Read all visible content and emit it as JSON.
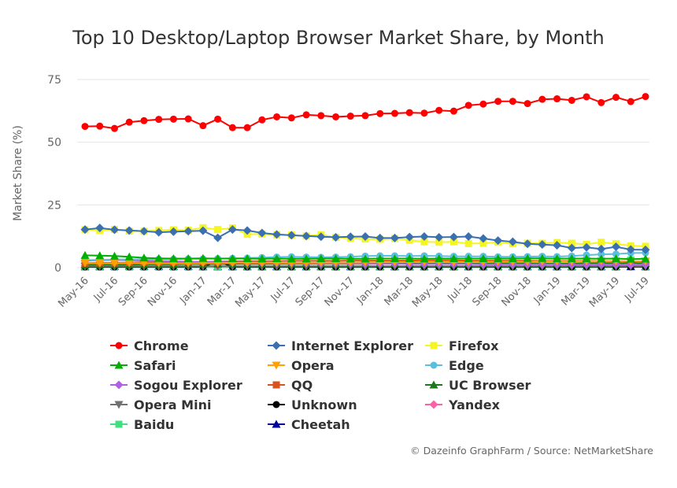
{
  "chart_data": {
    "type": "line",
    "title": "Top 10 Desktop/Laptop Browser Market Share, by Month",
    "ylabel": "Market Share (%)",
    "xlabel": "",
    "ylim": [
      0,
      75
    ],
    "yticks": [
      "0",
      "25",
      "50",
      "75"
    ],
    "grid": true,
    "legend_position": "bottom",
    "x": [
      "May-16",
      "Jun-16",
      "Jul-16",
      "Aug-16",
      "Sep-16",
      "Oct-16",
      "Nov-16",
      "Dec-16",
      "Jan-17",
      "Feb-17",
      "Mar-17",
      "Apr-17",
      "May-17",
      "Jun-17",
      "Jul-17",
      "Aug-17",
      "Sep-17",
      "Oct-17",
      "Nov-17",
      "Dec-17",
      "Jan-18",
      "Feb-18",
      "Mar-18",
      "Apr-18",
      "May-18",
      "Jun-18",
      "Jul-18",
      "Aug-18",
      "Sep-18",
      "Oct-18",
      "Nov-18",
      "Dec-18",
      "Jan-19",
      "Feb-19",
      "Mar-19",
      "Apr-19",
      "May-19",
      "Jun-19",
      "Jul-19"
    ],
    "xtick_labels": [
      "May-16",
      "Jul-16",
      "Sep-16",
      "Nov-16",
      "Jan-17",
      "Mar-17",
      "May-17",
      "Jul-17",
      "Sep-17",
      "Nov-17",
      "Jan-18",
      "Mar-18",
      "May-18",
      "Jul-18",
      "Sep-18",
      "Nov-18",
      "Jan-19",
      "Mar-19",
      "May-19",
      "Jul-19"
    ],
    "series": [
      {
        "name": "Chrome",
        "color": "#ff0000",
        "marker": "circle",
        "values": [
          56.3,
          56.4,
          55.5,
          58,
          58.6,
          59.1,
          59.2,
          59.3,
          56.6,
          59.2,
          55.8,
          55.8,
          58.9,
          60.1,
          59.7,
          60.9,
          60.6,
          60.1,
          60.4,
          60.6,
          61.4,
          61.5,
          61.8,
          61.6,
          62.7,
          62.4,
          64.7,
          65.2,
          66.3,
          66.3,
          65.4,
          67.1,
          67.3,
          66.7,
          68.1,
          65.8,
          67.9,
          66.2,
          68.2
        ]
      },
      {
        "name": "Internet Explorer",
        "color": "#3a6fb0",
        "marker": "diamond",
        "values": [
          15.2,
          15.8,
          15.1,
          14.8,
          14.5,
          14.1,
          14.3,
          14.5,
          14.7,
          11.9,
          15.2,
          14.8,
          13.8,
          13.2,
          12.9,
          12.6,
          12.3,
          12.1,
          12.3,
          12.4,
          11.8,
          11.8,
          12.2,
          12.4,
          12.1,
          12.2,
          12.4,
          11.6,
          10.8,
          10.3,
          9.5,
          9.2,
          8.9,
          7.8,
          8.1,
          7.4,
          8.3,
          7.2,
          7.1
        ]
      },
      {
        "name": "Firefox",
        "color": "#f5f522",
        "marker": "square",
        "values": [
          15.1,
          14.8,
          15.2,
          14.6,
          14.5,
          14.8,
          15.1,
          14.9,
          15.9,
          15.2,
          15.8,
          13.3,
          13.4,
          13.1,
          13.0,
          12.6,
          13.1,
          12.1,
          11.7,
          11.4,
          11.3,
          11.6,
          10.9,
          10.3,
          10.1,
          10.3,
          9.6,
          9.7,
          10.1,
          9.5,
          9.7,
          9.7,
          10.0,
          9.7,
          9.3,
          10.1,
          9.5,
          8.7,
          8.5
        ]
      },
      {
        "name": "Safari",
        "color": "#00b000",
        "marker": "triangle",
        "values": [
          4.9,
          4.8,
          4.6,
          4.3,
          3.9,
          3.7,
          3.6,
          3.6,
          3.7,
          3.6,
          3.6,
          3.6,
          3.5,
          3.6,
          3.5,
          3.5,
          3.6,
          3.6,
          3.5,
          3.5,
          3.6,
          3.6,
          3.6,
          3.5,
          3.6,
          3.6,
          3.6,
          3.6,
          3.6,
          3.6,
          3.7,
          3.7,
          3.6,
          3.6,
          3.6,
          3.5,
          3.6,
          3.4,
          3.5
        ]
      },
      {
        "name": "Opera",
        "color": "#ff9f00",
        "marker": "triangle-down",
        "values": [
          1.8,
          1.7,
          1.7,
          1.8,
          1.7,
          1.7,
          1.7,
          1.7,
          1.8,
          1.8,
          1.9,
          1.9,
          1.9,
          1.9,
          1.9,
          1.9,
          2.0,
          2.0,
          2.0,
          2.1,
          2.1,
          2.2,
          2.2,
          2.3,
          2.3,
          2.2,
          2.3,
          2.3,
          2.4,
          2.4,
          2.4,
          2.5,
          2.5,
          2.5,
          2.6,
          2.6,
          2.6,
          2.5,
          2.6
        ]
      },
      {
        "name": "Edge",
        "color": "#5bc0e0",
        "marker": "circle",
        "values": [
          3.0,
          3.1,
          3.2,
          3.3,
          3.3,
          3.4,
          3.4,
          3.5,
          3.5,
          3.6,
          3.7,
          3.8,
          4.0,
          4.2,
          4.3,
          4.2,
          4.1,
          4.2,
          4.3,
          4.6,
          4.7,
          4.7,
          4.6,
          4.7,
          4.6,
          4.5,
          4.5,
          4.5,
          4.3,
          4.3,
          4.4,
          4.5,
          4.4,
          4.6,
          5.0,
          5.3,
          5.4,
          5.8,
          5.9
        ]
      },
      {
        "name": "Sogou Explorer",
        "color": "#b060e0",
        "marker": "diamond",
        "values": [
          2.8,
          2.9,
          3.0,
          2.9,
          2.8,
          2.6,
          2.5,
          2.4,
          2.2,
          2.1,
          2.0,
          1.9,
          1.9,
          1.8,
          1.7,
          1.7,
          1.6,
          1.6,
          1.6,
          1.5,
          1.5,
          1.5,
          1.4,
          1.4,
          1.4,
          1.4,
          1.4,
          1.3,
          1.3,
          1.3,
          1.3,
          1.3,
          1.3,
          1.2,
          1.2,
          1.2,
          1.2,
          1.1,
          1.2
        ]
      },
      {
        "name": "QQ",
        "color": "#d9531e",
        "marker": "square",
        "values": [
          1.8,
          1.9,
          1.9,
          2.0,
          2.1,
          2.1,
          2.2,
          2.3,
          2.3,
          2.4,
          2.5,
          2.6,
          2.6,
          2.6,
          2.7,
          2.7,
          2.7,
          2.7,
          2.8,
          2.8,
          2.8,
          2.8,
          2.8,
          2.9,
          2.9,
          2.9,
          2.8,
          2.8,
          2.8,
          2.8,
          2.8,
          2.7,
          2.7,
          2.7,
          2.7,
          2.6,
          2.6,
          2.5,
          2.5
        ]
      },
      {
        "name": "UC Browser",
        "color": "#1a7a1a",
        "marker": "triangle",
        "values": [
          1.1,
          1.2,
          1.2,
          1.2,
          1.3,
          1.3,
          1.3,
          1.4,
          1.4,
          1.4,
          1.5,
          1.5,
          1.5,
          1.5,
          1.5,
          1.5,
          1.5,
          1.5,
          1.5,
          1.5,
          1.6,
          1.6,
          1.6,
          1.6,
          1.6,
          1.6,
          1.6,
          1.6,
          1.7,
          1.7,
          1.7,
          1.7,
          1.7,
          1.7,
          1.8,
          1.8,
          1.8,
          1.8,
          1.8
        ]
      },
      {
        "name": "Opera Mini",
        "color": "#707070",
        "marker": "triangle-down",
        "values": [
          0.5,
          0.5,
          0.5,
          0.5,
          0.5,
          0.5,
          0.5,
          0.5,
          0.5,
          0.5,
          0.5,
          0.5,
          0.5,
          0.5,
          0.5,
          0.5,
          0.5,
          0.5,
          0.5,
          0.5,
          0.5,
          0.5,
          0.5,
          0.5,
          0.5,
          0.5,
          0.5,
          0.5,
          0.5,
          0.5,
          0.5,
          0.5,
          0.5,
          0.5,
          0.5,
          0.5,
          0.5,
          0.5,
          0.5
        ]
      },
      {
        "name": "Unknown",
        "color": "#000000",
        "marker": "circle",
        "values": [
          0.3,
          0.3,
          0.3,
          0.3,
          0.3,
          0.3,
          0.3,
          0.3,
          0.3,
          2.5,
          0.3,
          0.3,
          0.3,
          0.3,
          0.3,
          0.3,
          0.3,
          0.3,
          0.3,
          0.3,
          0.3,
          0.3,
          0.3,
          0.3,
          0.3,
          0.3,
          0.3,
          0.3,
          0.3,
          0.3,
          0.3,
          0.3,
          0.3,
          0.3,
          0.3,
          0.3,
          0.3,
          0.3,
          0.3
        ]
      },
      {
        "name": "Yandex",
        "color": "#ff5fa8",
        "marker": "diamond",
        "values": [
          0.6,
          0.6,
          0.6,
          0.6,
          0.6,
          0.6,
          0.6,
          0.6,
          0.6,
          0.6,
          0.6,
          0.6,
          0.6,
          0.6,
          0.6,
          0.6,
          0.6,
          0.6,
          0.6,
          0.6,
          0.6,
          0.6,
          0.6,
          0.6,
          0.6,
          0.6,
          0.6,
          0.6,
          0.6,
          0.6,
          0.6,
          0.6,
          0.6,
          0.6,
          0.6,
          0.6,
          0.6,
          0.6,
          0.6
        ]
      },
      {
        "name": "Baidu",
        "color": "#40e080",
        "marker": "square",
        "values": [
          0.2,
          0.2,
          0.2,
          0.2,
          0.2,
          0.2,
          0.2,
          0.2,
          0.2,
          0.2,
          0.2,
          0.2,
          0.2,
          0.2,
          0.2,
          0.2,
          0.2,
          0.2,
          0.2,
          0.2,
          0.2,
          0.2,
          0.2,
          0.2,
          0.2,
          0.2,
          0.2,
          0.2,
          0.2,
          0.2,
          0.2,
          0.2,
          0.2,
          0.2,
          0.2,
          0.2,
          0.2,
          3.0,
          0.2
        ]
      },
      {
        "name": "Cheetah",
        "color": "#000099",
        "marker": "triangle",
        "values": [
          0.4,
          0.4,
          0.5,
          0.6,
          0.5,
          0.5,
          0.5,
          0.5,
          0.4,
          0.4,
          0.4,
          0.4,
          0.4,
          0.4,
          0.4,
          0.4,
          0.4,
          0.4,
          0.4,
          0.4,
          0.4,
          0.4,
          0.4,
          0.4,
          0.4,
          0.4,
          0.4,
          0.4,
          0.4,
          0.4,
          0.4,
          0.4,
          0.4,
          0.4,
          0.4,
          0.4,
          0.4,
          0.4,
          0.4
        ]
      }
    ]
  },
  "credits": "© Dazeinfo GraphFarm / Source: NetMarketShare"
}
